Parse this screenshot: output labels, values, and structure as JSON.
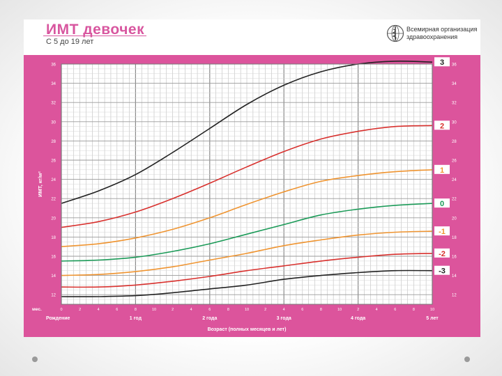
{
  "header": {
    "title": "ИМТ девочек",
    "subtitle": "С 5 до 19 лет",
    "org_line1": "Всемирная организация",
    "org_line2": "здравоохранения"
  },
  "colors": {
    "background": "#dc549c",
    "grid": "#bdbdbd",
    "z3": "#222222",
    "z2": "#d8302d",
    "z1": "#ef9430",
    "z0": "#1a9a57",
    "zm1": "#ef9430",
    "zm2": "#d8302d",
    "zm3": "#222222"
  },
  "chart_data": {
    "type": "line",
    "xlabel": "Возраст (полных месяцев и лет)",
    "ylabel": "ИМТ, кг/м²",
    "x_prefix": "мес.",
    "ylim": [
      11,
      36
    ],
    "x_ticks": [
      "0",
      "2",
      "4",
      "6",
      "8",
      "10",
      "2",
      "4",
      "6",
      "8",
      "10",
      "2",
      "4",
      "6",
      "8",
      "10",
      "2",
      "4",
      "6",
      "8",
      "10"
    ],
    "year_labels": [
      {
        "month": 0,
        "label": "Рождение"
      },
      {
        "month": 12,
        "label": "1 год"
      },
      {
        "month": 24,
        "label": "2 годa"
      },
      {
        "month": 36,
        "label": "3 года"
      },
      {
        "month": 48,
        "label": "4 года"
      },
      {
        "month": 60,
        "label": "5 лет"
      }
    ],
    "y_ticks": [
      12,
      14,
      16,
      18,
      20,
      22,
      24,
      26,
      28,
      30,
      32,
      34,
      36
    ],
    "x": [
      0,
      6,
      12,
      18,
      24,
      30,
      36,
      42,
      48,
      54,
      60
    ],
    "series": [
      {
        "name": "3",
        "values": [
          21.5,
          22.8,
          24.5,
          26.8,
          29.3,
          31.8,
          33.8,
          35.2,
          36.0,
          36.3,
          36.2
        ]
      },
      {
        "name": "2",
        "values": [
          19.0,
          19.6,
          20.6,
          22.0,
          23.6,
          25.3,
          26.9,
          28.2,
          29.0,
          29.5,
          29.6
        ]
      },
      {
        "name": "1",
        "values": [
          17.0,
          17.3,
          17.9,
          18.8,
          20.0,
          21.4,
          22.7,
          23.8,
          24.4,
          24.8,
          25.0
        ]
      },
      {
        "name": "0",
        "values": [
          15.5,
          15.6,
          15.9,
          16.5,
          17.3,
          18.3,
          19.3,
          20.3,
          20.9,
          21.3,
          21.5
        ]
      },
      {
        "name": "-1",
        "values": [
          14.0,
          14.1,
          14.4,
          14.9,
          15.6,
          16.3,
          17.1,
          17.7,
          18.2,
          18.5,
          18.6
        ]
      },
      {
        "name": "-2",
        "values": [
          12.8,
          12.8,
          13.0,
          13.4,
          13.9,
          14.5,
          15.0,
          15.5,
          15.9,
          16.2,
          16.3
        ]
      },
      {
        "name": "-3",
        "values": [
          11.8,
          11.8,
          11.9,
          12.2,
          12.6,
          13.0,
          13.6,
          14.0,
          14.3,
          14.5,
          14.5
        ]
      }
    ]
  }
}
